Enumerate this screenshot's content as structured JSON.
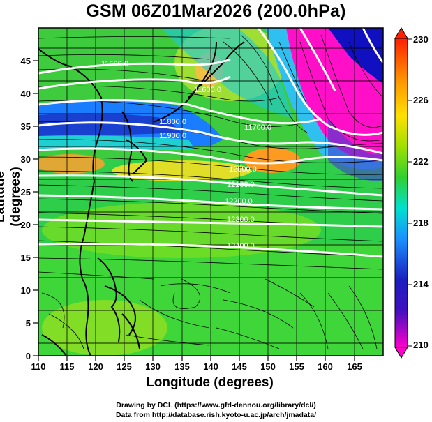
{
  "title": "GSM 06Z01Mar2026 (200.0hPa)",
  "axes": {
    "xlabel": "Longitude (degrees)",
    "ylabel": "Latitude  (degrees)",
    "x_ticks": [
      "110",
      "115",
      "120",
      "125",
      "130",
      "135",
      "140",
      "145",
      "150",
      "155",
      "160",
      "165"
    ],
    "y_ticks": [
      "0",
      "5",
      "10",
      "15",
      "20",
      "25",
      "30",
      "35",
      "40",
      "45"
    ],
    "x_range": [
      110,
      170
    ],
    "y_range": [
      0,
      50
    ]
  },
  "colorbar": {
    "ticks": [
      "210",
      "214",
      "218",
      "222",
      "226",
      "230"
    ],
    "range": [
      210,
      230
    ],
    "colors": [
      "#ff00cc",
      "#1a00b0",
      "#1a80ff",
      "#00e0e0",
      "#30d040",
      "#80e000",
      "#ffe000",
      "#ff8000",
      "#ff2000"
    ]
  },
  "contour_labels": [
    "11500.0",
    "11800.0",
    "11700.0",
    "11900.0",
    "12000.0",
    "12100.0",
    "12200.0",
    "12300.0",
    "12400.0",
    "11600.0"
  ],
  "credits": {
    "line1": "Drawing by DCL (https://www.gfd-dennou.org/library/dcl/)",
    "line2": "Data from http://database.rish.kyoto-u.ac.jp/arch/jmadata/"
  }
}
